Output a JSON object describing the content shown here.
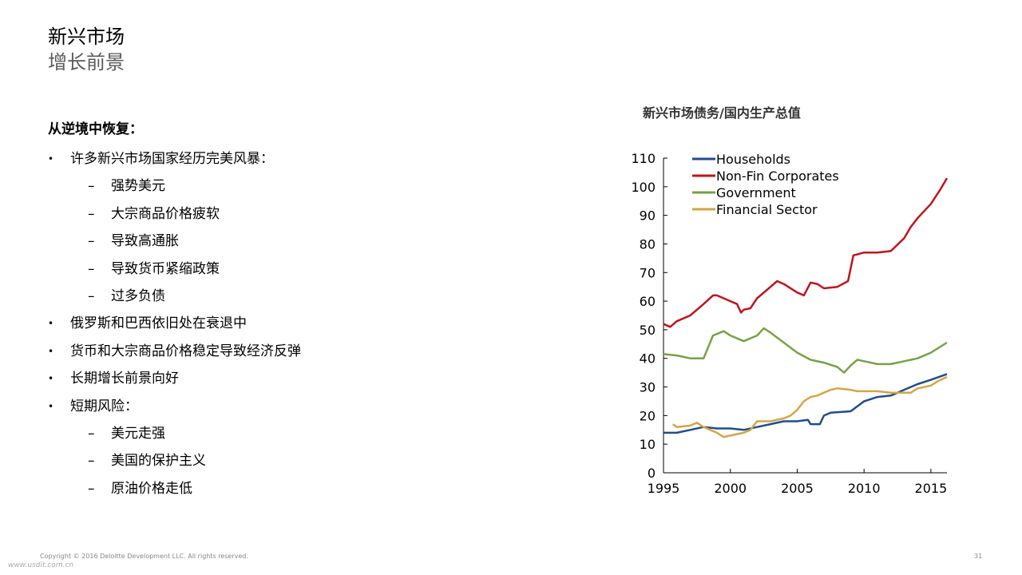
{
  "title": {
    "main": "新兴市场",
    "sub": "增长前景"
  },
  "content": {
    "heading": "从逆境中恢复：",
    "bullets": [
      {
        "level": 1,
        "text": "许多新兴市场国家经历完美风暴："
      },
      {
        "level": 2,
        "text": "强势美元"
      },
      {
        "level": 2,
        "text": "大宗商品价格疲软"
      },
      {
        "level": 2,
        "text": "导致高通胀"
      },
      {
        "level": 2,
        "text": "导致货币紧缩政策"
      },
      {
        "level": 2,
        "text": "过多负债"
      },
      {
        "level": 1,
        "text": "俄罗斯和巴西依旧处在衰退中"
      },
      {
        "level": 1,
        "text": "货币和大宗商品价格稳定导致经济反弹"
      },
      {
        "level": 1,
        "text": "长期增长前景向好"
      },
      {
        "level": 1,
        "text": "短期风险："
      },
      {
        "level": 2,
        "text": "美元走强"
      },
      {
        "level": 2,
        "text": "美国的保护主义"
      },
      {
        "level": 2,
        "text": "原油价格走低"
      }
    ],
    "markers": {
      "level1": "•",
      "level2": "–"
    }
  },
  "chart_data": {
    "type": "line",
    "title": "新兴市场债务/国内生产总值",
    "xlabel": "",
    "ylabel": "",
    "xlim": [
      1995,
      2016.2
    ],
    "ylim": [
      0,
      110
    ],
    "x_ticks": [
      1995,
      2000,
      2005,
      2010,
      2015
    ],
    "y_ticks": [
      0,
      10,
      20,
      30,
      40,
      50,
      60,
      70,
      80,
      90,
      100,
      110
    ],
    "grid": false,
    "legend_position": "top-left",
    "series": [
      {
        "name": "Households",
        "color": "#1f4e8c",
        "points": [
          [
            1995,
            14
          ],
          [
            1996,
            14
          ],
          [
            1997,
            15
          ],
          [
            1998,
            16
          ],
          [
            1999,
            15.5
          ],
          [
            2000,
            15.5
          ],
          [
            2001,
            15
          ],
          [
            2002,
            16
          ],
          [
            2003,
            17
          ],
          [
            2004,
            18
          ],
          [
            2005,
            18
          ],
          [
            2005.8,
            18.5
          ],
          [
            2006,
            17
          ],
          [
            2006.7,
            17
          ],
          [
            2007,
            20
          ],
          [
            2007.5,
            21
          ],
          [
            2009,
            21.5
          ],
          [
            2010,
            25
          ],
          [
            2011,
            26.5
          ],
          [
            2012,
            27
          ],
          [
            2013,
            29
          ],
          [
            2014,
            31
          ],
          [
            2015,
            32.5
          ],
          [
            2016.2,
            34.5
          ]
        ]
      },
      {
        "name": "Non-Fin Corporates",
        "color": "#c0141b",
        "points": [
          [
            1995,
            52
          ],
          [
            1995.5,
            51
          ],
          [
            1996,
            53
          ],
          [
            1997,
            55
          ],
          [
            1998,
            59
          ],
          [
            1998.7,
            62
          ],
          [
            1999,
            62
          ],
          [
            2000,
            60
          ],
          [
            2000.5,
            59
          ],
          [
            2000.8,
            56
          ],
          [
            2001,
            57
          ],
          [
            2001.5,
            57.5
          ],
          [
            2002,
            61
          ],
          [
            2003,
            65
          ],
          [
            2003.5,
            67
          ],
          [
            2004,
            66
          ],
          [
            2005,
            63
          ],
          [
            2005.5,
            62
          ],
          [
            2006,
            66.5
          ],
          [
            2006.5,
            66
          ],
          [
            2007,
            64.5
          ],
          [
            2008,
            65
          ],
          [
            2008.8,
            67
          ],
          [
            2009.2,
            76
          ],
          [
            2010,
            77
          ],
          [
            2011,
            77
          ],
          [
            2012,
            77.5
          ],
          [
            2013,
            82
          ],
          [
            2013.5,
            86
          ],
          [
            2014,
            89
          ],
          [
            2015,
            94
          ],
          [
            2015.7,
            99
          ],
          [
            2016.2,
            103
          ]
        ]
      },
      {
        "name": "Government",
        "color": "#77a244",
        "points": [
          [
            1995,
            41.5
          ],
          [
            1996,
            41
          ],
          [
            1997,
            40
          ],
          [
            1998,
            40
          ],
          [
            1998.7,
            48
          ],
          [
            1999.5,
            49.5
          ],
          [
            2000,
            48
          ],
          [
            2001,
            46
          ],
          [
            2002,
            48
          ],
          [
            2002.5,
            50.5
          ],
          [
            2003,
            49
          ],
          [
            2004,
            45.5
          ],
          [
            2005,
            42
          ],
          [
            2006,
            39.5
          ],
          [
            2007,
            38.5
          ],
          [
            2008,
            37
          ],
          [
            2008.5,
            35
          ],
          [
            2009,
            37.5
          ],
          [
            2009.5,
            39.5
          ],
          [
            2010,
            39
          ],
          [
            2011,
            38
          ],
          [
            2012,
            38
          ],
          [
            2013,
            39
          ],
          [
            2014,
            40
          ],
          [
            2015,
            42
          ],
          [
            2016.2,
            45.5
          ]
        ]
      },
      {
        "name": "Financial Sector",
        "color": "#d4a646",
        "points": [
          [
            1995.7,
            17
          ],
          [
            1996,
            16
          ],
          [
            1997,
            16.5
          ],
          [
            1997.5,
            17.5
          ],
          [
            1998,
            16
          ],
          [
            1998.5,
            15
          ],
          [
            1999,
            14
          ],
          [
            1999.5,
            12.5
          ],
          [
            2000,
            13
          ],
          [
            2000.5,
            13.5
          ],
          [
            2001,
            14
          ],
          [
            2001.5,
            15
          ],
          [
            2002,
            18
          ],
          [
            2003,
            18
          ],
          [
            2004,
            19
          ],
          [
            2004.5,
            20
          ],
          [
            2005,
            22
          ],
          [
            2005.5,
            25
          ],
          [
            2006,
            26.5
          ],
          [
            2006.5,
            27
          ],
          [
            2007,
            28
          ],
          [
            2007.5,
            29
          ],
          [
            2008,
            29.5
          ],
          [
            2009,
            29
          ],
          [
            2009.5,
            28.5
          ],
          [
            2010,
            28.5
          ],
          [
            2011,
            28.5
          ],
          [
            2012,
            28
          ],
          [
            2013,
            28
          ],
          [
            2013.5,
            28
          ],
          [
            2014,
            29.5
          ],
          [
            2015,
            30.5
          ],
          [
            2015.5,
            32
          ],
          [
            2016.2,
            33.5
          ]
        ]
      }
    ]
  },
  "footer": {
    "copyright": "Copyright © 2016 Deloitte Development LLC. All rights reserved.",
    "page_number": "31",
    "watermark": "www.usdit.com.cn"
  }
}
